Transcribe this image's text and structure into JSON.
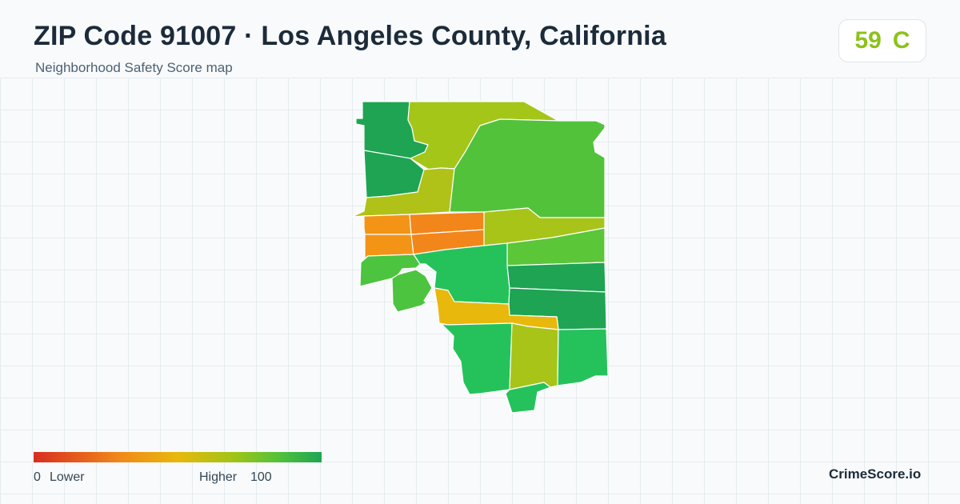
{
  "header": {
    "title": "ZIP Code 91007 · Los Angeles County, California",
    "subtitle": "Neighborhood Safety Score map"
  },
  "score": {
    "value": "59",
    "grade": "C",
    "color": "#8cc21a"
  },
  "legend": {
    "min_value": "0",
    "min_label": "Lower",
    "max_label": "Higher",
    "max_value": "100",
    "colors": [
      "#d92d20",
      "#f0891a",
      "#e8b80c",
      "#9ec417",
      "#52c23a",
      "#1ea453"
    ]
  },
  "map": {
    "regions": [
      {
        "name": "region-northwest-1",
        "color": "#1ea453"
      },
      {
        "name": "region-north-central",
        "color": "#a4c619"
      },
      {
        "name": "region-northwest-2",
        "color": "#1ea453"
      },
      {
        "name": "region-central-north",
        "color": "#b0c218"
      },
      {
        "name": "region-northeast",
        "color": "#52c23a"
      },
      {
        "name": "region-west-orange-1",
        "color": "#f39417"
      },
      {
        "name": "region-center-orange-1",
        "color": "#f2861a"
      },
      {
        "name": "region-west-orange-2",
        "color": "#f39417"
      },
      {
        "name": "region-center-orange-2",
        "color": "#f2861a"
      },
      {
        "name": "region-east-middle",
        "color": "#a8c419"
      },
      {
        "name": "region-east-2",
        "color": "#5ac638"
      },
      {
        "name": "region-southwest-1",
        "color": "#4cc43f"
      },
      {
        "name": "region-southwest-2",
        "color": "#4cc43f"
      },
      {
        "name": "region-center-south",
        "color": "#25c25c"
      },
      {
        "name": "region-east-3",
        "color": "#1ea453"
      },
      {
        "name": "region-east-4",
        "color": "#1ea453"
      },
      {
        "name": "region-yellow-strip",
        "color": "#e8b80c"
      },
      {
        "name": "region-south-1",
        "color": "#25c25c"
      },
      {
        "name": "region-south-2",
        "color": "#a8c419"
      },
      {
        "name": "region-south-3",
        "color": "#25c25c"
      },
      {
        "name": "region-south-tip",
        "color": "#25c25c"
      }
    ]
  },
  "brand": "CrimeScore.io"
}
